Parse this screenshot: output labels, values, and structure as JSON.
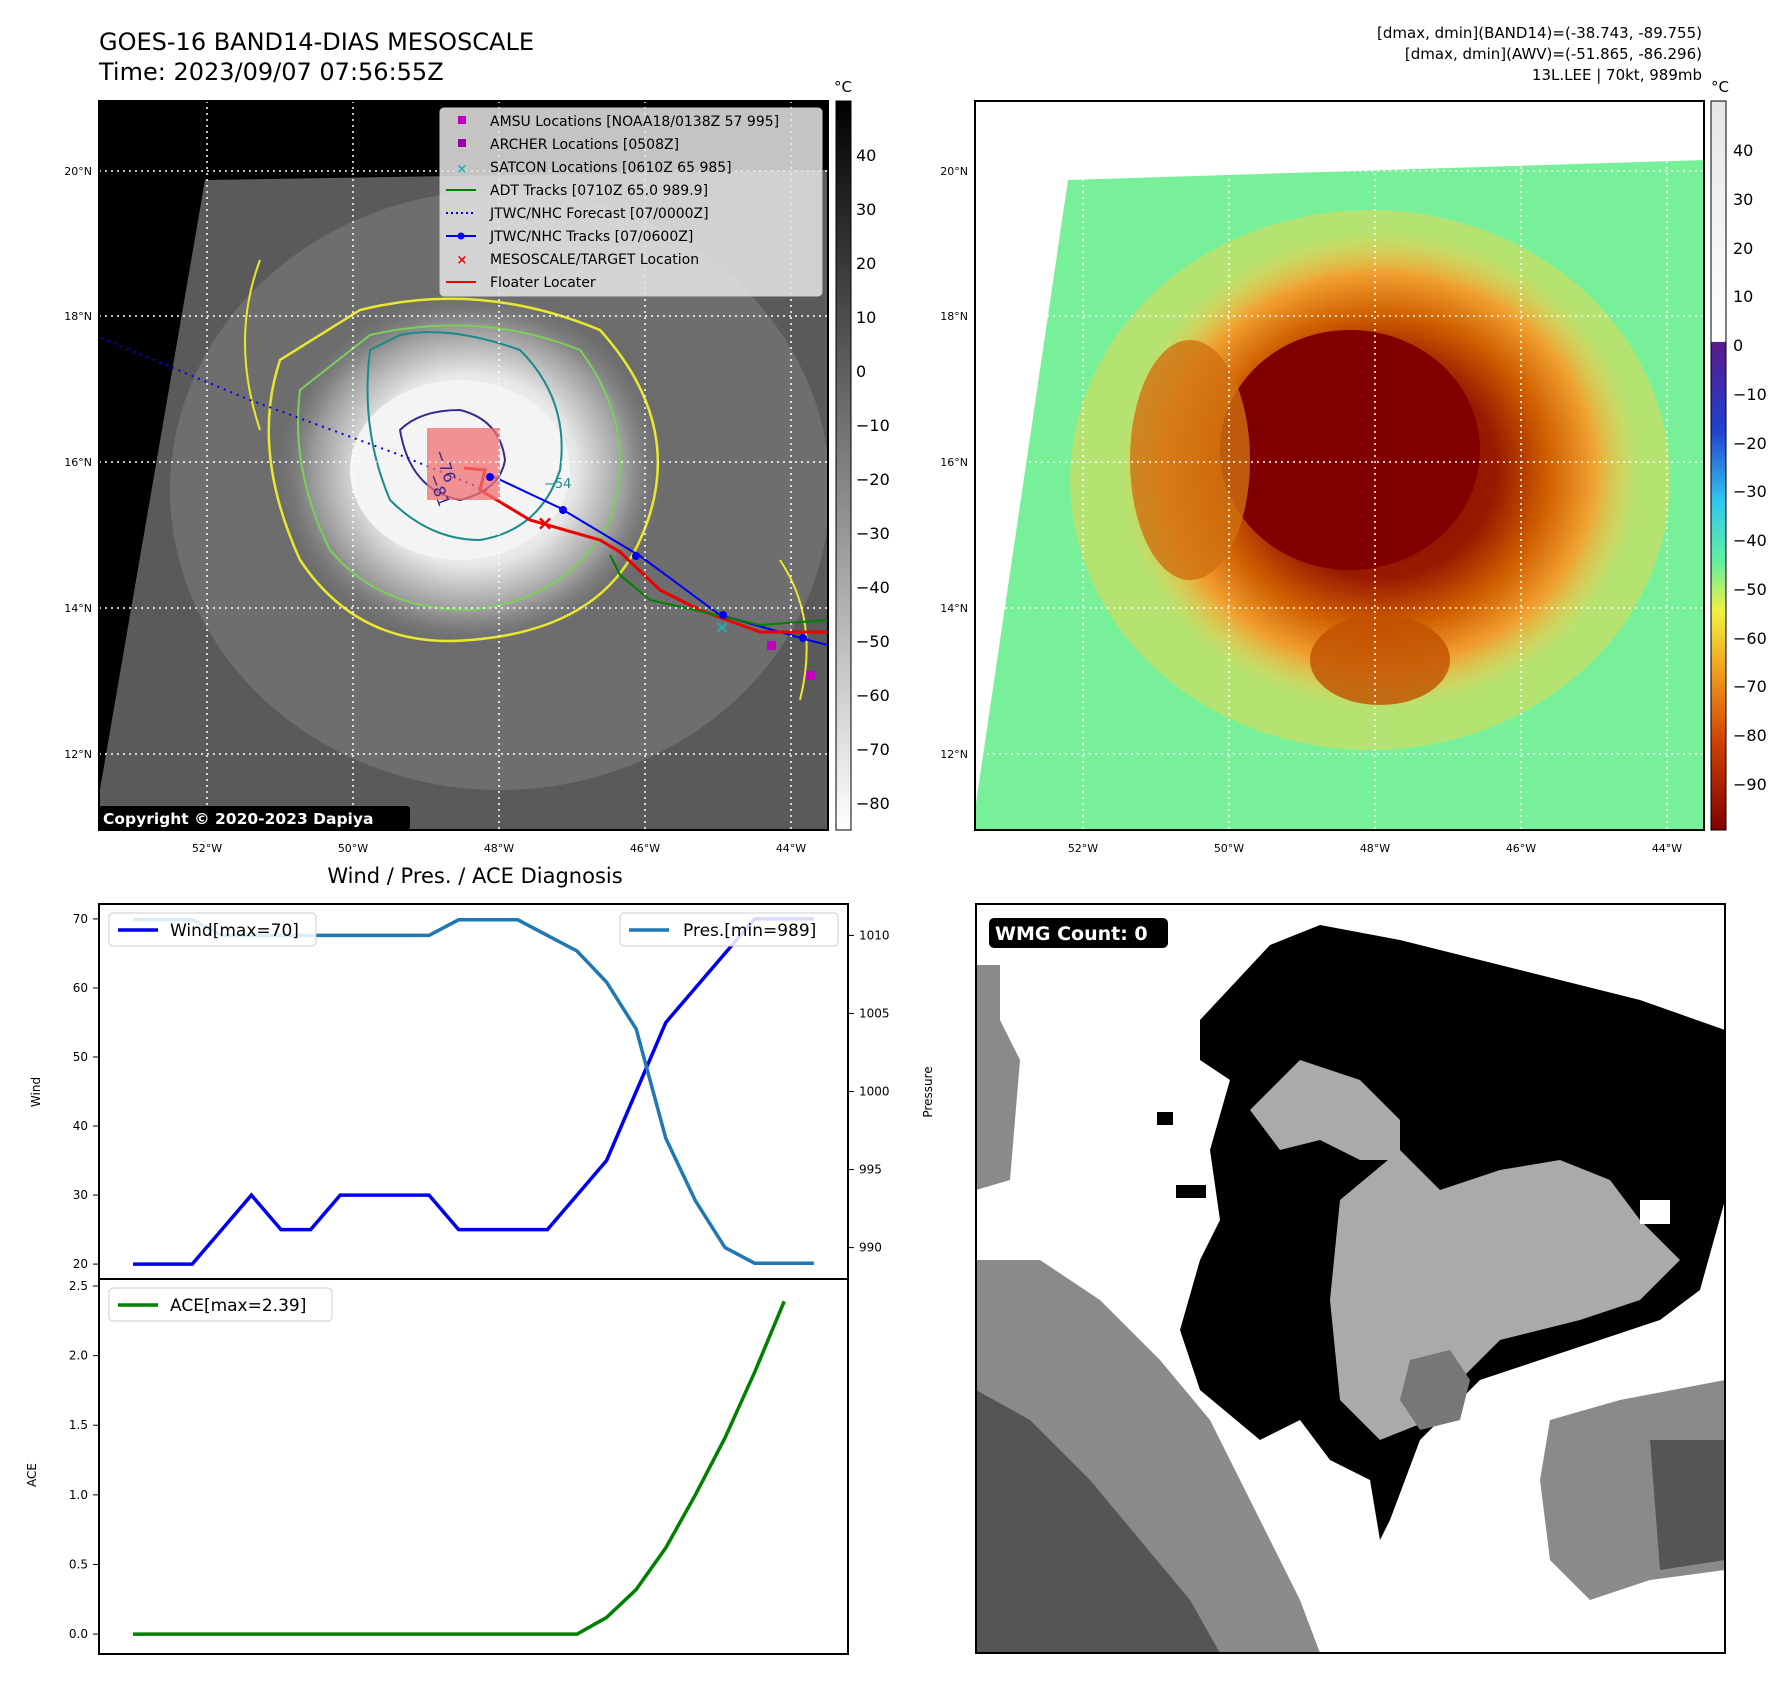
{
  "header": {
    "title_line1": "GOES-16 BAND14-DIAS MESOSCALE",
    "title_line2": "Time: 2023/09/07 07:56:55Z",
    "info_line1": "[dmax, dmin](BAND14)=(-38.743, -89.755)",
    "info_line2": "[dmax, dmin](AWV)=(-51.865, -86.296)",
    "info_line3": "13L.LEE | 70kt, 989mb"
  },
  "ir_panel": {
    "lat_ticks": [
      "20°N",
      "18°N",
      "16°N",
      "14°N",
      "12°N"
    ],
    "lon_ticks": [
      "52°W",
      "50°W",
      "48°W",
      "46°W",
      "44°W"
    ],
    "copyright": "Copyright © 2020-2023 Dapiya",
    "colorbar_unit": "°C",
    "colorbar_ticks": [
      "40",
      "30",
      "20",
      "10",
      "0",
      "−10",
      "−20",
      "−30",
      "−40",
      "−50",
      "−60",
      "−70",
      "−80"
    ],
    "storm_labels": [
      "−76",
      "−81",
      "−54"
    ],
    "legend": [
      {
        "label": "AMSU Locations [NOAA18/0138Z 57 995]",
        "symbol": "square",
        "color": "#c000c0"
      },
      {
        "label": "ARCHER Locations [0508Z]",
        "symbol": "square",
        "color": "#9900aa"
      },
      {
        "label": "SATCON Locations [0610Z 65 985]",
        "symbol": "x",
        "color": "#22b0b0"
      },
      {
        "label": "ADT Tracks [0710Z 65.0 989.9]",
        "symbol": "line",
        "color": "#008000"
      },
      {
        "label": "JTWC/NHC Forecast [07/0000Z]",
        "symbol": "dotted",
        "color": "#0000ee"
      },
      {
        "label": "JTWC/NHC Tracks [07/0600Z]",
        "symbol": "line-dot",
        "color": "#0000ee"
      },
      {
        "label": "MESOSCALE/TARGET Location",
        "symbol": "x",
        "color": "#ee0000"
      },
      {
        "label": "Floater Locater",
        "symbol": "line",
        "color": "#ee0000"
      }
    ]
  },
  "awv_panel": {
    "lat_ticks": [
      "20°N",
      "18°N",
      "16°N",
      "14°N",
      "12°N"
    ],
    "lon_ticks": [
      "52°W",
      "50°W",
      "48°W",
      "46°W",
      "44°W"
    ],
    "colorbar_unit": "°C",
    "colorbar_ticks": [
      "40",
      "30",
      "20",
      "10",
      "0",
      "−10",
      "−20",
      "−30",
      "−40",
      "−50",
      "−60",
      "−70",
      "−80",
      "−90"
    ]
  },
  "wmg_panel": {
    "badge": "WMG Count: 0"
  },
  "chart_data": [
    {
      "type": "line",
      "title": "Wind / Pres. / ACE Diagnosis",
      "ylabel": "Wind",
      "y2label": "Pressure",
      "ylim": [
        19,
        71
      ],
      "y2lim": [
        988.5,
        1011.5
      ],
      "yticks": [
        20,
        30,
        40,
        50,
        60,
        70
      ],
      "y2ticks": [
        990,
        995,
        1000,
        1005,
        1010
      ],
      "series": [
        {
          "name": "Wind[max=70]",
          "color": "#0000ee",
          "axis": "left",
          "values": [
            20,
            20,
            20,
            25,
            30,
            25,
            25,
            30,
            30,
            30,
            30,
            25,
            25,
            25,
            25,
            30,
            35,
            45,
            55,
            60,
            65,
            70,
            70,
            70
          ]
        },
        {
          "name": "Pres.[min=989]",
          "color": "#1f77b4",
          "axis": "right",
          "values": [
            1011,
            1011,
            1011,
            1010,
            1010,
            1010,
            1010,
            1010,
            1010,
            1010,
            1010,
            1011,
            1011,
            1011,
            1010,
            1009,
            1007,
            1004,
            997,
            993,
            990,
            989,
            989,
            989
          ]
        }
      ]
    },
    {
      "type": "line",
      "ylabel": "ACE",
      "ylim": [
        -0.1,
        2.5
      ],
      "yticks": [
        "0.0",
        "0.5",
        "1.0",
        "1.5",
        "2.0",
        "2.5"
      ],
      "series": [
        {
          "name": "ACE[max=2.39]",
          "color": "#008000",
          "values": [
            0,
            0,
            0,
            0,
            0,
            0,
            0,
            0,
            0,
            0,
            0,
            0,
            0,
            0,
            0,
            0,
            0.12,
            0.32,
            0.62,
            1.0,
            1.41,
            1.88,
            2.39
          ]
        }
      ]
    }
  ]
}
